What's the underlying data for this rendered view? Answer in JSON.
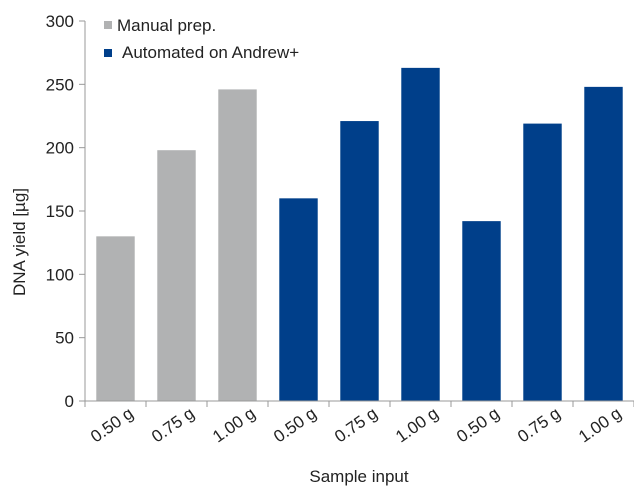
{
  "chart_data": {
    "type": "bar",
    "categories": [
      "0.50 g",
      "0.75 g",
      "1.00 g",
      "0.50 g",
      "0.75 g",
      "1.00 g",
      "0.50 g",
      "0.75 g",
      "1.00 g"
    ],
    "values": [
      130,
      198,
      246,
      160,
      221,
      263,
      142,
      219,
      248
    ],
    "bar_series": [
      0,
      0,
      0,
      1,
      1,
      1,
      1,
      1,
      1
    ],
    "series": [
      {
        "name": "Manual prep.",
        "color": "#b1b2b3"
      },
      {
        "name": "Automated on Andrew+",
        "color": "#003f8a"
      }
    ],
    "xlabel": "Sample input",
    "ylabel": "DNA yield [µg]",
    "ylim": [
      0,
      300
    ],
    "yticks": [
      0,
      50,
      100,
      150,
      200,
      250,
      300
    ],
    "grid": false,
    "legend_position": "top-left"
  }
}
